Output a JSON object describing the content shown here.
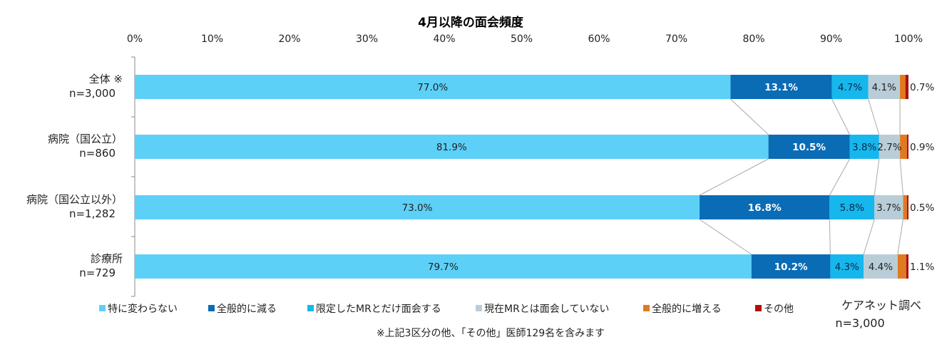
{
  "chart_data": {
    "type": "bar",
    "orientation": "horizontal",
    "stacked": true,
    "percent": true,
    "title": "4月以降の面会頻度",
    "xlim": [
      0,
      100
    ],
    "x_ticks": [
      "0%",
      "10%",
      "20%",
      "30%",
      "40%",
      "50%",
      "60%",
      "70%",
      "80%",
      "90%",
      "100%"
    ],
    "categories": [
      {
        "line1": "全体 ※",
        "line2": "n=3,000"
      },
      {
        "line1": "病院（国公立）",
        "line2": "n=860"
      },
      {
        "line1": "病院（国公立以外）",
        "line2": "n=1,282"
      },
      {
        "line1": "診療所",
        "line2": "n=729"
      }
    ],
    "series": [
      {
        "name": "特に変わらない",
        "color": "#5DD0F8",
        "values": [
          77.0,
          81.9,
          73.0,
          79.7
        ],
        "labels": [
          "77.0%",
          "81.9%",
          "73.0%",
          "79.7%"
        ]
      },
      {
        "name": "全般的に減る",
        "color": "#0A6CB5",
        "values": [
          13.1,
          10.5,
          16.8,
          10.2
        ],
        "labels": [
          "13.1%",
          "10.5%",
          "16.8%",
          "10.2%"
        ]
      },
      {
        "name": "限定したMRとだけ面会する",
        "color": "#16B7EC",
        "values": [
          4.7,
          3.8,
          5.8,
          4.3
        ],
        "labels": [
          "4.7%",
          "3.8%",
          "5.8%",
          "4.3%"
        ]
      },
      {
        "name": "現在MRとは面会していない",
        "color": "#B9CDD8",
        "values": [
          4.1,
          2.7,
          3.7,
          4.4
        ],
        "labels": [
          "4.1%",
          "2.7%",
          "3.7%",
          "4.4%"
        ]
      },
      {
        "name": "全般的に増える",
        "color": "#E07A20",
        "values": [
          0.7,
          0.9,
          0.5,
          1.1
        ],
        "labels": [
          "0.7%",
          "0.9%",
          "0.5%",
          "1.1%"
        ]
      },
      {
        "name": "その他",
        "color": "#B01010",
        "values": [
          0.4,
          0.2,
          0.2,
          0.3
        ],
        "labels": [
          "",
          "",
          "",
          ""
        ]
      }
    ],
    "legend_position": "bottom",
    "grid": false
  },
  "footnote": "※上記3区分の他、「その他」医師129名を含みます",
  "source": {
    "line1": "ケアネット調べ",
    "line2": "n=3,000"
  }
}
